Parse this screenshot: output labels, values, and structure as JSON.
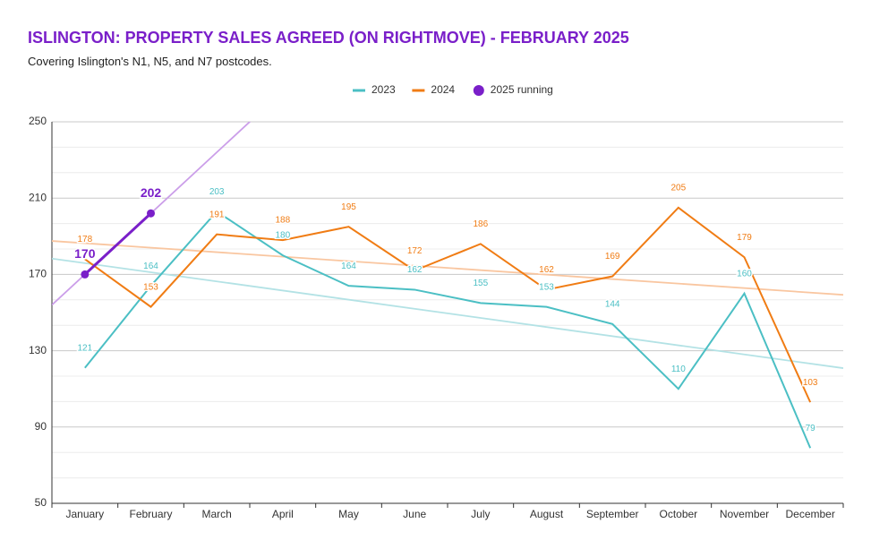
{
  "chart_data": {
    "type": "line",
    "title": "ISLINGTON: PROPERTY SALES AGREED (ON RIGHTMOVE) - FEBRUARY 2025",
    "subtitle": "Covering Islington's N1, N5, and N7 postcodes.",
    "categories": [
      "January",
      "February",
      "March",
      "April",
      "May",
      "June",
      "July",
      "August",
      "September",
      "October",
      "November",
      "December"
    ],
    "series": [
      {
        "name": "2023",
        "color": "#4bbfc4",
        "trend_color": "#b3e2e5",
        "values": [
          121,
          164,
          203,
          180,
          164,
          162,
          155,
          153,
          144,
          110,
          160,
          79
        ]
      },
      {
        "name": "2024",
        "color": "#f07c14",
        "trend_color": "#f9c6a0",
        "values": [
          178,
          153,
          191,
          188,
          195,
          172,
          186,
          162,
          169,
          205,
          179,
          103
        ]
      },
      {
        "name": "2025 running",
        "color": "#7a1fc9",
        "trend_color": "#cb9ee9",
        "marker": "circle",
        "values": [
          170,
          202,
          null,
          null,
          null,
          null,
          null,
          null,
          null,
          null,
          null,
          null
        ]
      }
    ],
    "ylim": [
      50,
      250
    ],
    "yticks": [
      50,
      90,
      130,
      170,
      210,
      250
    ],
    "grid": true,
    "trendline": true,
    "data_labels": true,
    "legend": "top"
  }
}
